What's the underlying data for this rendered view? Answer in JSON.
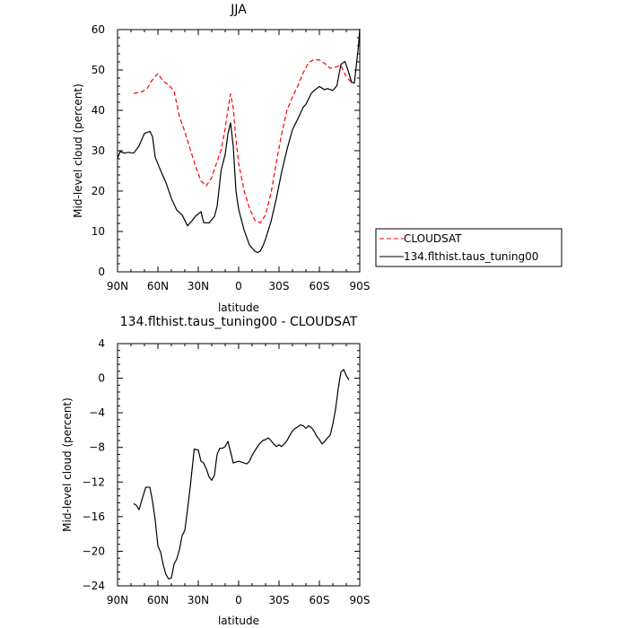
{
  "chart_data": [
    {
      "type": "line",
      "title": "JJA",
      "xlabel": "latitude",
      "ylabel": "Mid-level cloud (percent)",
      "xlim": [
        90,
        -90
      ],
      "ylim": [
        0,
        60
      ],
      "xticks": [
        90,
        60,
        30,
        0,
        -30,
        -60,
        -90
      ],
      "xtick_labels": [
        "90N",
        "60N",
        "30N",
        "0",
        "30S",
        "60S",
        "90S"
      ],
      "yticks": [
        0,
        10,
        20,
        30,
        40,
        50,
        60
      ],
      "ytick_labels": [
        "0",
        "10",
        "20",
        "30",
        "40",
        "50",
        "60"
      ],
      "legend_position": "right",
      "series": [
        {
          "name": "CLOUDSAT",
          "color": "#ff0000",
          "dash": "dashed",
          "x": [
            78,
            72,
            68,
            64,
            60,
            56,
            52,
            48,
            44,
            40,
            36,
            32,
            28,
            24,
            20,
            16,
            13,
            10,
            8,
            6,
            4,
            2,
            0,
            -4,
            -8,
            -12,
            -16,
            -20,
            -24,
            -28,
            -32,
            -36,
            -40,
            -44,
            -48,
            -52,
            -56,
            -60,
            -64,
            -68,
            -72,
            -76,
            -80,
            -84
          ],
          "values": [
            44.2,
            44.6,
            45.4,
            47.6,
            49.1,
            47.2,
            46.3,
            44.8,
            38.5,
            34.7,
            30.4,
            26.1,
            22.5,
            21.3,
            23.4,
            27.3,
            30.2,
            35.5,
            40.1,
            44.1,
            40.6,
            32.8,
            26.9,
            20.2,
            15.8,
            12.8,
            12.1,
            14.1,
            19.4,
            27.1,
            34.2,
            40.1,
            43.3,
            46.1,
            49.3,
            51.8,
            52.6,
            52.5,
            51.6,
            50.4,
            50.7,
            51.1,
            48.3,
            46.9
          ]
        },
        {
          "name": "134.flthist.taus_tuning00",
          "color": "#000000",
          "dash": "solid",
          "x": [
            90,
            88,
            85,
            82,
            78,
            74,
            70,
            66,
            64,
            62,
            58,
            54,
            50,
            46,
            42,
            38,
            35,
            32,
            28,
            26,
            22,
            18,
            16,
            13,
            10,
            8,
            6,
            4,
            2,
            0,
            -4,
            -8,
            -12,
            -14,
            -16,
            -18,
            -20,
            -24,
            -28,
            -32,
            -36,
            -40,
            -44,
            -48,
            -50,
            -54,
            -56,
            -60,
            -64,
            -66,
            -70,
            -73,
            -76,
            -79,
            -81,
            -84,
            -86,
            -89,
            -90
          ],
          "values": [
            28.1,
            29.8,
            29.4,
            29.6,
            29.4,
            31.2,
            34.3,
            34.8,
            33.5,
            28.4,
            25.1,
            22.1,
            18.2,
            15.3,
            14.1,
            11.4,
            12.5,
            13.8,
            14.9,
            12.2,
            12.1,
            13.7,
            16.2,
            25.2,
            29.1,
            34.1,
            36.9,
            31.1,
            20.1,
            15.5,
            10.4,
            6.7,
            5.1,
            4.8,
            5.1,
            6.4,
            8.1,
            12.4,
            18.1,
            24.8,
            30.4,
            35.2,
            37.9,
            40.8,
            41.5,
            44.2,
            44.9,
            45.9,
            45.1,
            45.4,
            44.9,
            46.1,
            51.4,
            52.1,
            50.2,
            46.9,
            46.8,
            55.8,
            60.2
          ]
        }
      ]
    },
    {
      "type": "line",
      "title": "134.flthist.taus_tuning00 - CLOUDSAT",
      "xlabel": "latitude",
      "ylabel": "Mid-level cloud (percent)",
      "xlim": [
        90,
        -90
      ],
      "ylim": [
        -24,
        4
      ],
      "xticks": [
        90,
        60,
        30,
        0,
        -30,
        -60,
        -90
      ],
      "xtick_labels": [
        "90N",
        "60N",
        "30N",
        "0",
        "30S",
        "60S",
        "90S"
      ],
      "yticks": [
        4,
        0,
        -4,
        -8,
        -12,
        -16,
        -20,
        -24
      ],
      "ytick_labels": [
        "4",
        "0",
        "−4",
        "−8",
        "−12",
        "−16",
        "−20",
        "−24"
      ],
      "series": [
        {
          "name": "",
          "color": "#000000",
          "dash": "solid",
          "x": [
            78,
            76,
            74,
            72,
            69,
            66,
            64,
            62,
            60,
            58,
            56,
            54,
            52,
            50,
            48,
            46,
            44,
            42,
            40,
            38,
            36,
            33,
            30,
            28,
            26,
            24,
            22,
            20,
            18,
            16,
            14,
            12,
            10,
            8,
            6,
            4,
            2,
            0,
            -2,
            -4,
            -6,
            -8,
            -10,
            -12,
            -14,
            -16,
            -18,
            -20,
            -22,
            -24,
            -26,
            -28,
            -30,
            -32,
            -34,
            -36,
            -38,
            -40,
            -42,
            -44,
            -46,
            -48,
            -50,
            -52,
            -54,
            -56,
            -58,
            -60,
            -62,
            -64,
            -66,
            -68,
            -70,
            -72,
            -74,
            -76,
            -78,
            -80,
            -82
          ],
          "values": [
            -14.5,
            -14.7,
            -15.2,
            -14.1,
            -12.6,
            -12.6,
            -14.2,
            -16.4,
            -19.4,
            -20.1,
            -21.6,
            -22.7,
            -23.2,
            -23.1,
            -21.5,
            -20.9,
            -19.8,
            -18.2,
            -17.6,
            -15.2,
            -12.6,
            -8.2,
            -8.3,
            -9.6,
            -9.8,
            -10.5,
            -11.4,
            -11.8,
            -11.2,
            -8.8,
            -8.1,
            -8.1,
            -7.9,
            -7.3,
            -8.5,
            -9.8,
            -9.7,
            -9.6,
            -9.7,
            -9.8,
            -9.9,
            -9.6,
            -8.9,
            -8.4,
            -7.9,
            -7.5,
            -7.2,
            -7.1,
            -6.9,
            -7.2,
            -7.6,
            -7.9,
            -7.7,
            -7.9,
            -7.6,
            -7.2,
            -6.6,
            -6.1,
            -5.8,
            -5.6,
            -5.4,
            -5.5,
            -5.8,
            -5.5,
            -5.7,
            -6.1,
            -6.7,
            -7.1,
            -7.6,
            -7.3,
            -6.9,
            -6.6,
            -5.3,
            -3.6,
            -1.2,
            0.7,
            1.0,
            0.3,
            -0.2
          ]
        }
      ]
    }
  ]
}
